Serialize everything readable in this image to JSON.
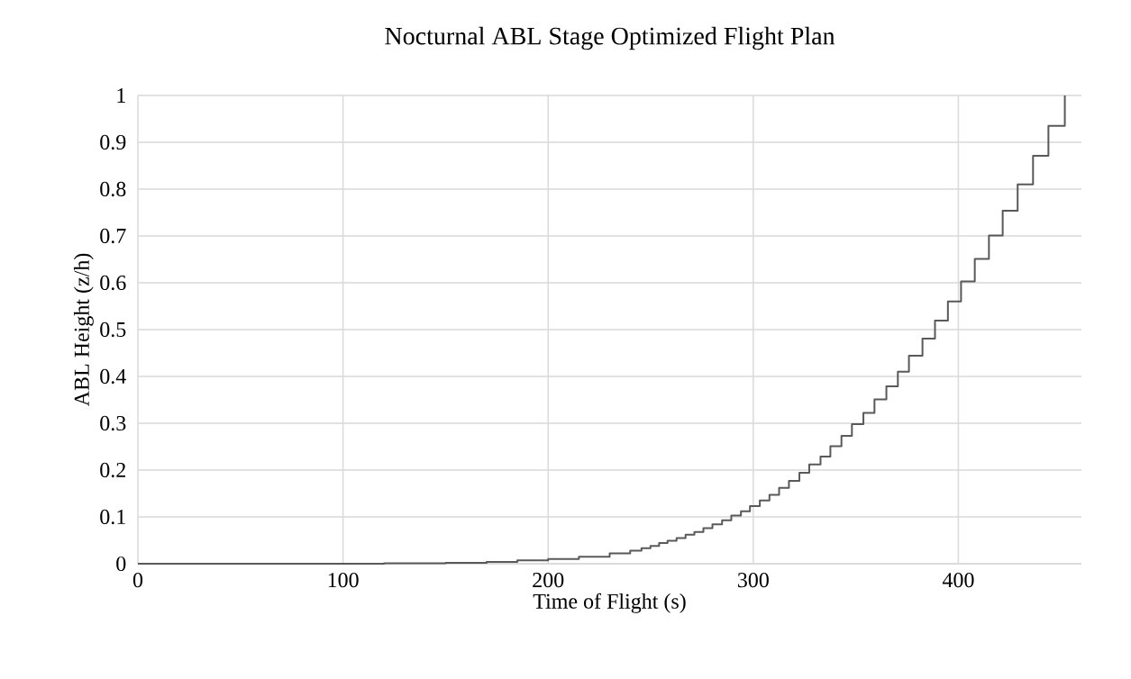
{
  "chart_data": {
    "type": "step",
    "title": "Nocturnal ABL Stage Optimized Flight Plan",
    "xlabel": "Time of Flight (s)",
    "ylabel": "ABL Height (z/h)",
    "xlim": [
      0,
      460
    ],
    "ylim": [
      0,
      1
    ],
    "xticks": [
      0,
      100,
      200,
      300,
      400
    ],
    "yticks": [
      0,
      0.1,
      0.2,
      0.3,
      0.4,
      0.5,
      0.6,
      0.7,
      0.8,
      0.9,
      1
    ],
    "grid": true,
    "marker": "none",
    "series": [
      {
        "color": "#595959",
        "x": [
          0,
          120,
          150,
          170,
          185,
          200,
          215,
          230,
          240,
          245.5,
          249.9,
          254.1,
          258.2,
          262.6,
          267.0,
          271.3,
          275.7,
          280.1,
          284.8,
          289.3,
          294.0,
          298.4,
          303.2,
          307.9,
          312.6,
          317.4,
          322.5,
          327.3,
          332.8,
          337.6,
          343.0,
          348.1,
          353.7,
          359.1,
          364.9,
          370.5,
          375.9,
          382.5,
          388.6,
          394.9,
          401.3,
          408.0,
          414.9,
          421.6,
          428.9,
          436.4,
          443.9,
          451.9
        ],
        "values": [
          0,
          0.001,
          0.002,
          0.004,
          0.007,
          0.01,
          0.015,
          0.022,
          0.028,
          0.033,
          0.038,
          0.044,
          0.049,
          0.055,
          0.062,
          0.068,
          0.076,
          0.084,
          0.093,
          0.103,
          0.112,
          0.123,
          0.135,
          0.147,
          0.162,
          0.177,
          0.194,
          0.212,
          0.229,
          0.251,
          0.273,
          0.298,
          0.322,
          0.351,
          0.379,
          0.41,
          0.444,
          0.481,
          0.519,
          0.56,
          0.603,
          0.651,
          0.701,
          0.754,
          0.81,
          0.871,
          0.935,
          1.0
        ]
      }
    ]
  }
}
